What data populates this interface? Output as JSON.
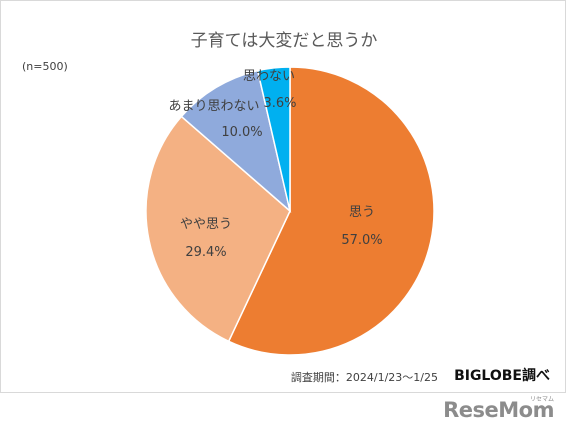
{
  "chart_data": {
    "type": "pie",
    "title": "子育ては大変だと思うか",
    "note": "(n=500)",
    "slices": [
      {
        "name": "思う",
        "value": 57.0,
        "label": "57.0%",
        "color": "#ED7D31"
      },
      {
        "name": "やや思う",
        "value": 29.4,
        "label": "29.4%",
        "color": "#F4B183"
      },
      {
        "name": "あまり思わない",
        "value": 10.0,
        "label": "10.0%",
        "color": "#8FAADC"
      },
      {
        "name": "思わない",
        "value": 3.6,
        "label": "3.6%",
        "color": "#00B0F0"
      }
    ],
    "start": "12 o'clock",
    "direction": "clockwise"
  },
  "source": {
    "note": "調査期間：2024/1/23〜1/25",
    "brand": "BIGLOBE調べ"
  },
  "watermark": {
    "text": "ReseMom",
    "sub": "リセマム"
  }
}
